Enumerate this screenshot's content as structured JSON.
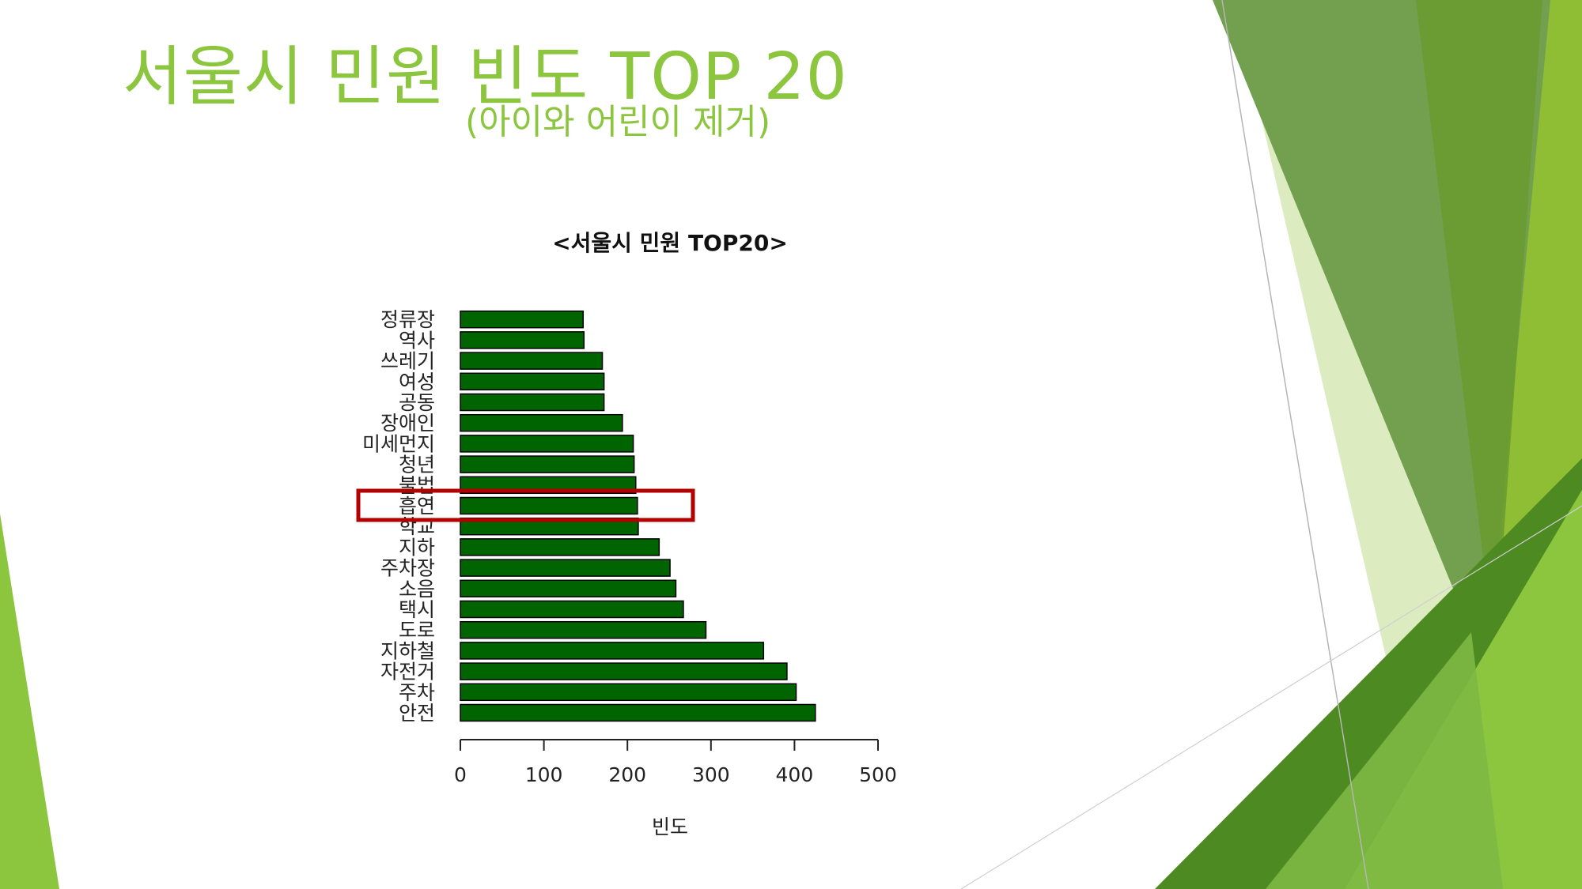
{
  "slide": {
    "title": "서울시 민원 빈도 TOP 20",
    "subtitle": "(아이와 어린이 제거)",
    "accent_color": "#8cc63f",
    "highlight_color": "#b30000"
  },
  "chart_data": {
    "type": "bar",
    "orientation": "horizontal",
    "title": "<서울시 민원 TOP20>",
    "xlabel": "빈도",
    "ylabel": "",
    "xlim": [
      0,
      500
    ],
    "xticks": [
      "0",
      "100",
      "200",
      "300",
      "400",
      "500"
    ],
    "bar_color": "#006400",
    "categories": [
      "안전",
      "주차",
      "자전거",
      "지하철",
      "도로",
      "택시",
      "소음",
      "주차장",
      "지하",
      "학교",
      "흡연",
      "불법",
      "청년",
      "미세먼지",
      "장애인",
      "공동",
      "여성",
      "쓰레기",
      "역사",
      "정류장"
    ],
    "values": [
      425,
      402,
      391,
      363,
      294,
      267,
      258,
      251,
      238,
      213,
      212,
      210,
      208,
      207,
      194,
      172,
      172,
      170,
      148,
      147
    ],
    "highlighted_category": "흡연",
    "grid": false,
    "legend": "none"
  }
}
